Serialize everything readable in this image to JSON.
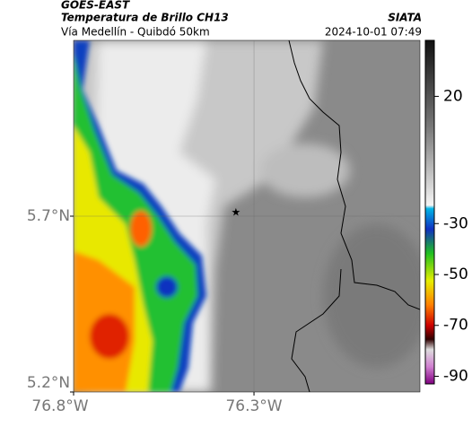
{
  "map": {
    "header": {
      "source": "GOES-EAST",
      "title": "Temperatura de Brillo CH13",
      "subtitle": "Vía Medellín - Quibdó 50km",
      "brand": "SIATA",
      "datetime": "2024-10-01 07:49"
    },
    "lonlim": [
      -76.8,
      -75.84
    ],
    "latlim": [
      5.2,
      6.2
    ],
    "lon_ticks": [
      {
        "value": -76.8,
        "label": "76.8°W"
      },
      {
        "value": -76.3,
        "label": "76.3°W"
      }
    ],
    "lat_ticks": [
      {
        "value": 5.7,
        "label": "5.7°N"
      },
      {
        "value": 5.2,
        "label": "5.2°N"
      }
    ],
    "colorbar": {
      "lim": [
        -93,
        42
      ],
      "ticks": [
        20,
        -30,
        -50,
        -70,
        -90
      ]
    },
    "station": {
      "lon": -76.35,
      "lat": 5.71
    }
  }
}
